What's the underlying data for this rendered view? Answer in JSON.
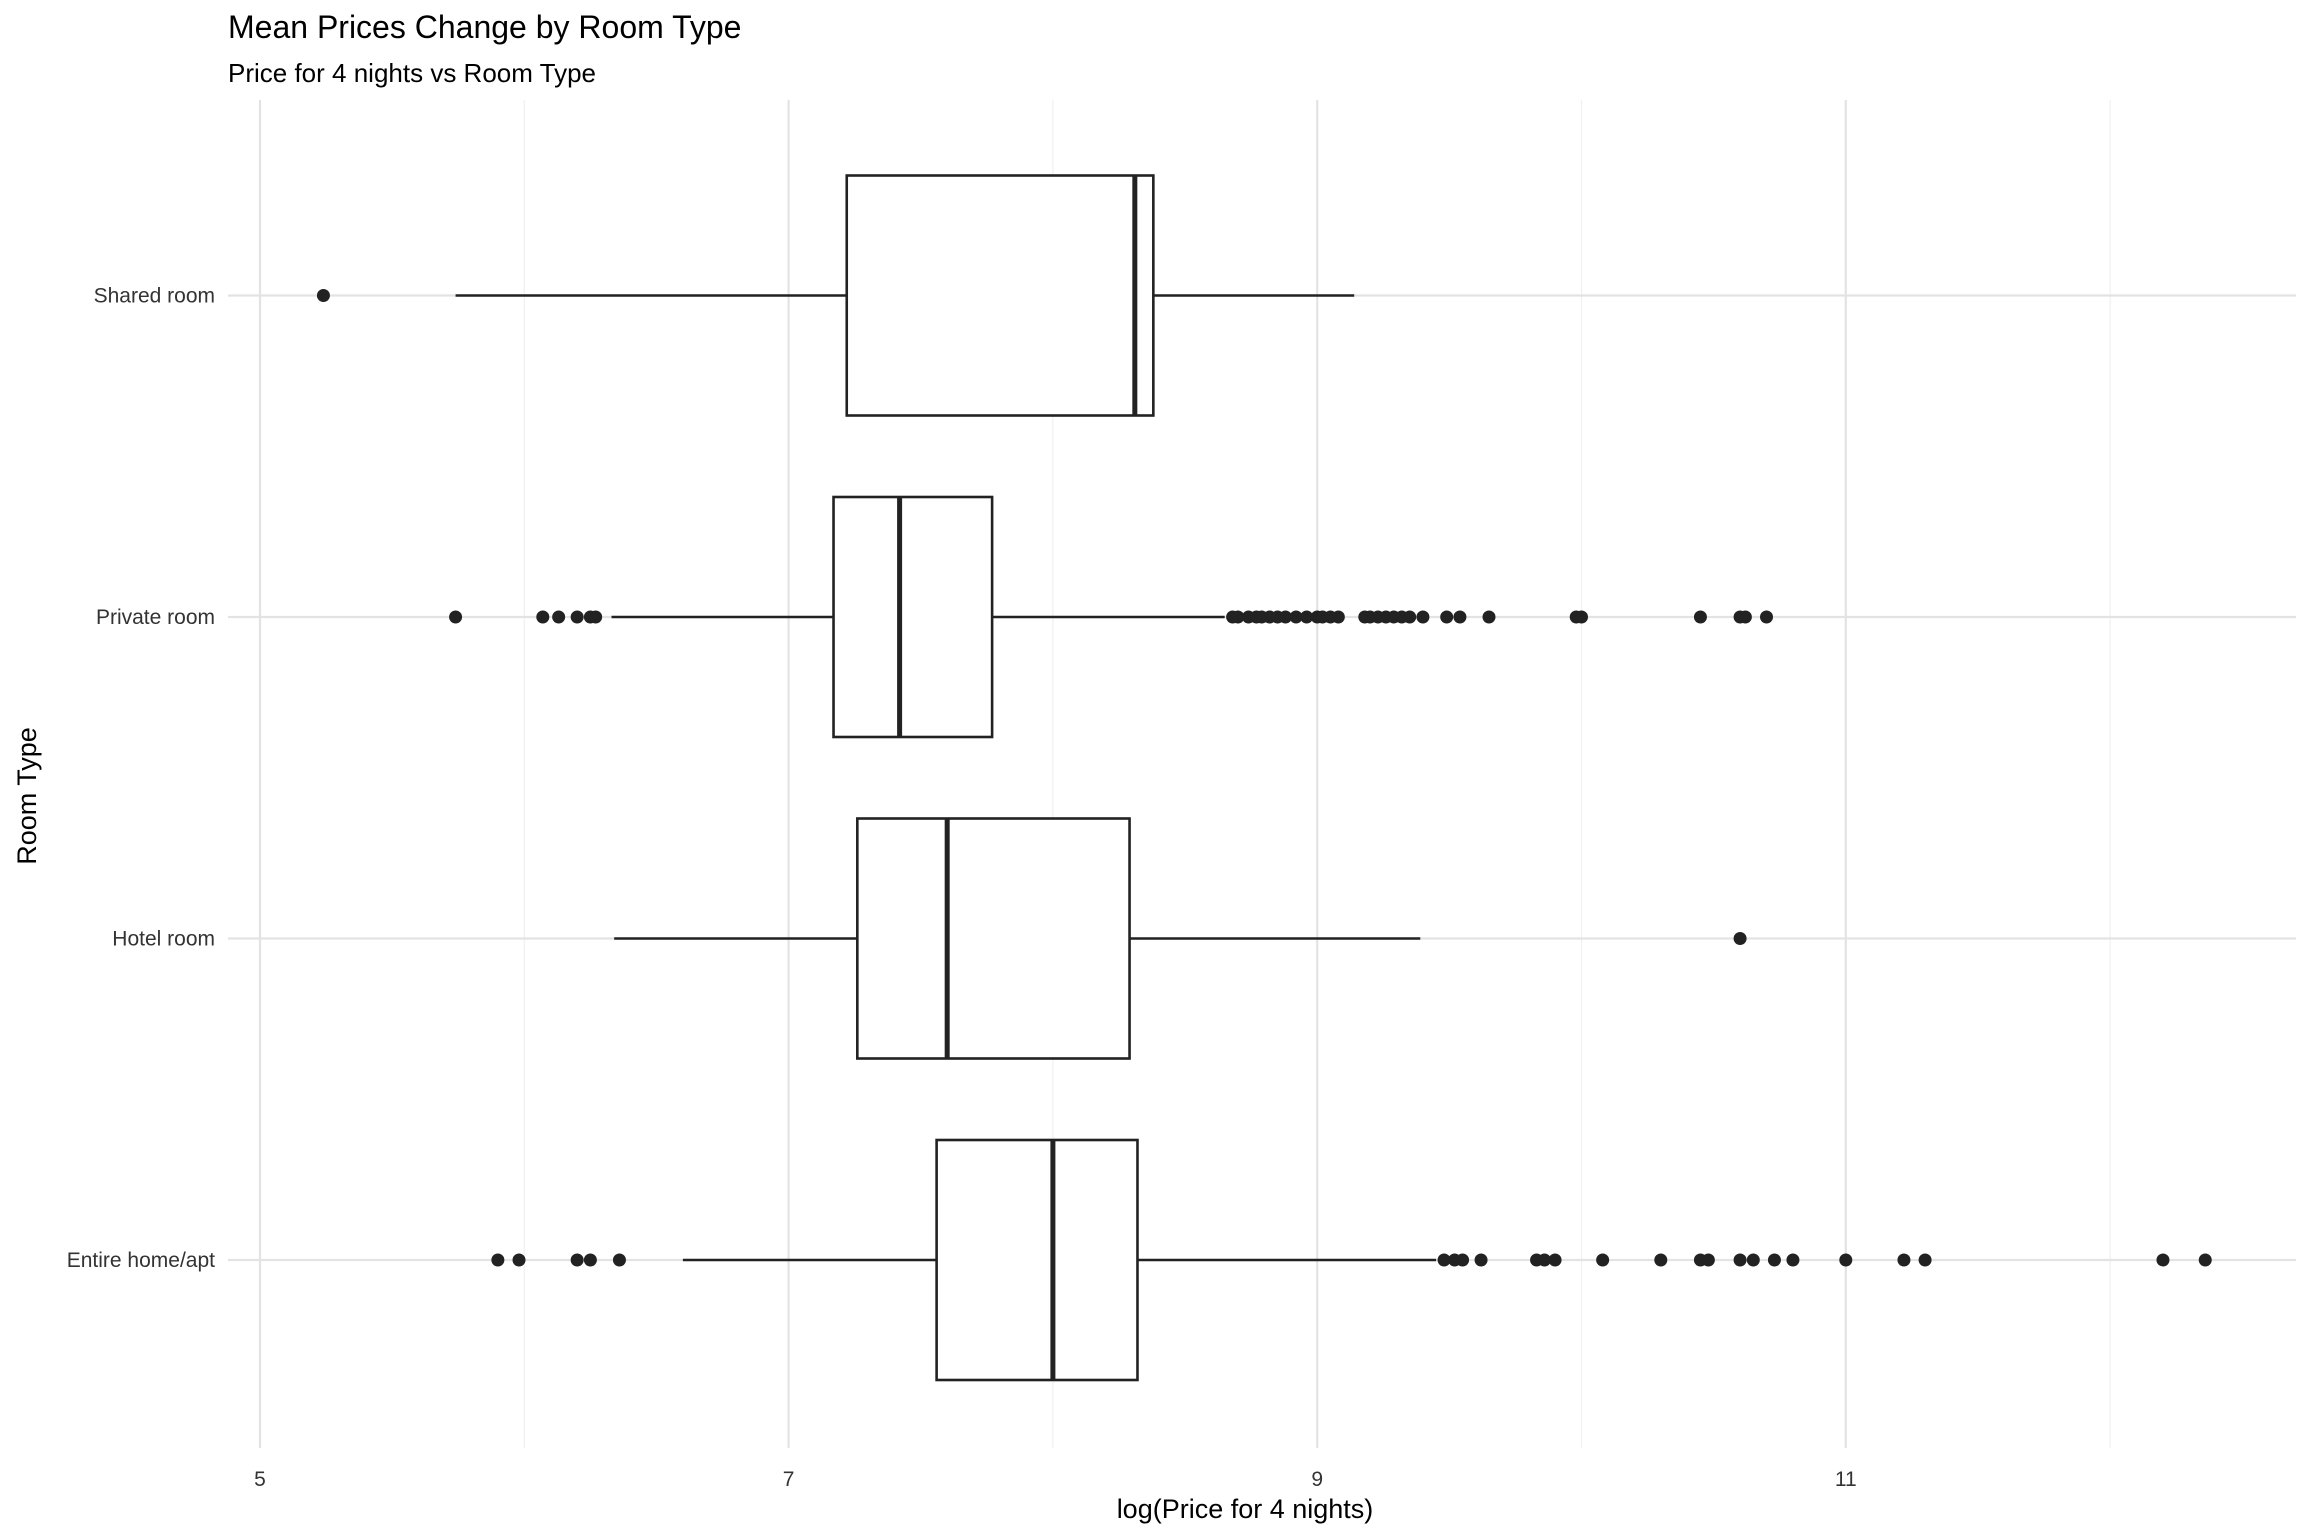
{
  "chart_data": {
    "type": "boxplot",
    "orientation": "horizontal",
    "title": "Mean Prices Change by Room Type",
    "subtitle": "Price for 4 nights vs Room Type",
    "xlabel": "log(Price for 4 nights)",
    "ylabel": "Room Type",
    "xlim": [
      4.95,
      12.7
    ],
    "x_ticks": [
      5,
      7,
      9,
      11
    ],
    "x_tick_labels": [
      "5",
      "7",
      "9",
      "11"
    ],
    "x_minor_ticks": [
      6,
      8,
      10,
      12
    ],
    "grid": true,
    "legend": "none",
    "colors": {
      "box": "#222222",
      "point": "#222222",
      "grid": "#e3e3e3",
      "background": "#ffffff"
    },
    "categories": [
      "Entire home/apt",
      "Hotel room",
      "Private room",
      "Shared room"
    ],
    "boxes": [
      {
        "category": "Entire home/apt",
        "whisker_low": 6.6,
        "q1": 7.56,
        "median": 8.0,
        "q3": 8.32,
        "whisker_high": 9.45,
        "outliers": [
          5.9,
          5.98,
          6.2,
          6.25,
          6.36,
          9.48,
          9.52,
          9.55,
          9.62,
          9.83,
          9.86,
          9.9,
          10.08,
          10.3,
          10.45,
          10.48,
          10.6,
          10.65,
          10.73,
          10.8,
          11.0,
          11.22,
          11.3,
          12.2,
          12.36
        ]
      },
      {
        "category": "Hotel room",
        "whisker_low": 6.34,
        "q1": 7.26,
        "median": 7.6,
        "q3": 8.29,
        "whisker_high": 9.39,
        "outliers": [
          10.6
        ]
      },
      {
        "category": "Private room",
        "whisker_low": 6.33,
        "q1": 7.17,
        "median": 7.42,
        "q3": 7.77,
        "whisker_high": 8.65,
        "outliers": [
          5.74,
          6.07,
          6.13,
          6.2,
          6.25,
          6.27,
          8.68,
          8.7,
          8.74,
          8.77,
          8.79,
          8.82,
          8.85,
          8.88,
          8.92,
          8.96,
          9.0,
          9.02,
          9.05,
          9.08,
          9.18,
          9.2,
          9.23,
          9.26,
          9.29,
          9.32,
          9.35,
          9.4,
          9.49,
          9.54,
          9.65,
          9.98,
          10.0,
          10.45,
          10.6,
          10.62,
          10.7
        ]
      },
      {
        "category": "Shared room",
        "whisker_low": 5.74,
        "q1": 7.22,
        "median": 8.31,
        "q3": 8.38,
        "whisker_high": 9.14,
        "outliers": [
          5.24
        ]
      }
    ]
  }
}
